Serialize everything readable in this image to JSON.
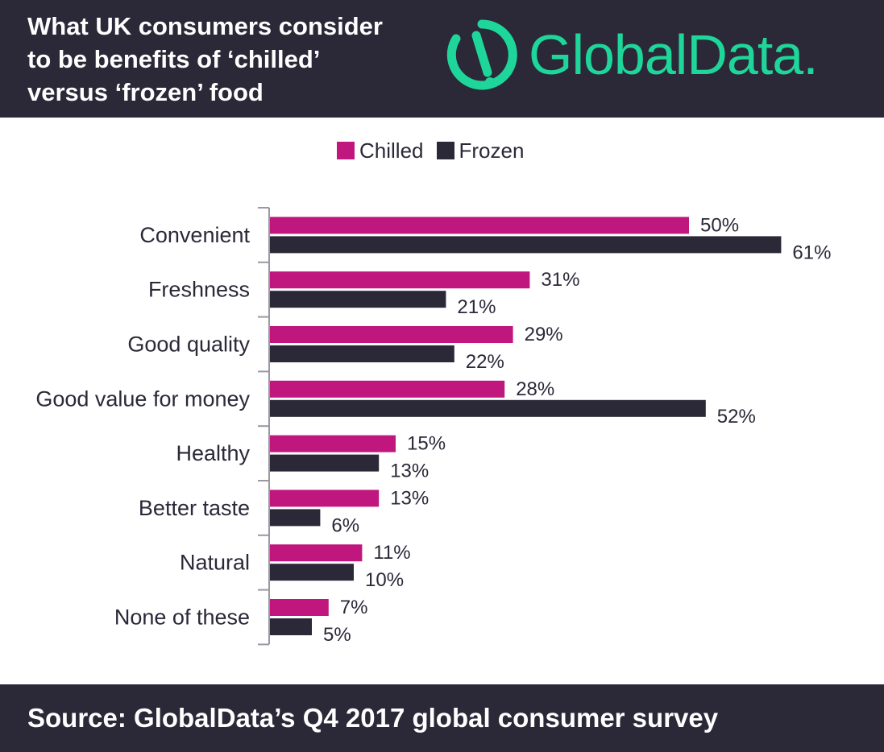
{
  "header": {
    "title": "What UK consumers consider\nto be benefits of ‘chilled’\nversus ‘frozen’ food",
    "logo_text": "GlobalData.",
    "logo_color": "#1fd69a",
    "background": "#2b2838"
  },
  "chart_data": {
    "type": "bar",
    "orientation": "horizontal",
    "categories": [
      "Convenient",
      "Freshness",
      "Good quality",
      "Good value for money",
      "Healthy",
      "Better taste",
      "Natural",
      "None of these"
    ],
    "series": [
      {
        "name": "Chilled",
        "color": "#c0177f",
        "values": [
          50,
          31,
          29,
          28,
          15,
          13,
          11,
          7
        ]
      },
      {
        "name": "Frozen",
        "color": "#2b2838",
        "values": [
          61,
          21,
          22,
          52,
          13,
          6,
          10,
          5
        ]
      }
    ],
    "value_suffix": "%",
    "xlim": [
      0,
      61
    ],
    "legend": "top-center",
    "grid": false
  },
  "footer": {
    "source": "Source: GlobalData’s Q4 2017 global consumer survey"
  }
}
